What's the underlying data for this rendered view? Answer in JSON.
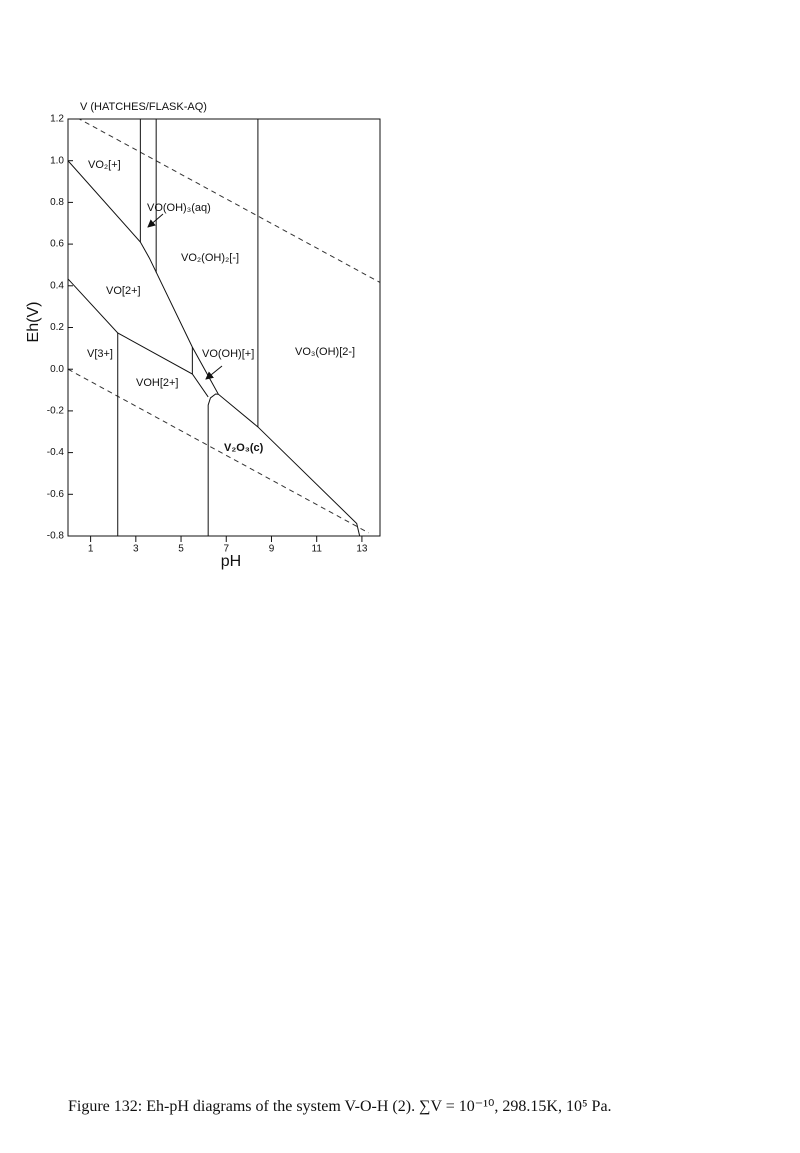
{
  "chart_data": {
    "type": "line",
    "title": "V (HATCHES/FLASK-AQ)",
    "x_label": "pH",
    "y_label": "Eh(V)",
    "xlim": [
      0,
      13.8
    ],
    "ylim": [
      -0.8,
      1.2
    ],
    "xticks": [
      1,
      3,
      5,
      7,
      9,
      11,
      13
    ],
    "yticks": [
      {
        "value": 1.2,
        "label": "1.2"
      },
      {
        "value": 1.0,
        "label": "1.0"
      },
      0.8,
      0.6,
      0.4,
      0.2,
      {
        "value": 0.0,
        "label": "0.0"
      },
      -0.2,
      -0.4,
      -0.6,
      -0.8
    ],
    "series": [
      {
        "color": "#333333",
        "dashed": true,
        "x": [
          0.4,
          13.8
        ],
        "y": [
          1.206,
          0.416
        ]
      },
      {
        "color": "#333333",
        "dashed": true,
        "x": [
          0,
          13.3
        ],
        "y": [
          0,
          -0.785
        ]
      },
      {
        "color": "#111111",
        "dashed": false,
        "x": [
          0,
          3.2,
          3.6,
          5.5,
          6.65,
          8.4,
          12.77,
          12.9
        ],
        "y": [
          1.0,
          0.61,
          0.533,
          0.106,
          -0.12,
          -0.277,
          -0.74,
          -0.8
        ]
      },
      {
        "color": "#111111",
        "dashed": false,
        "x": [
          0,
          2.2,
          5.5,
          6.2
        ],
        "y": [
          0.433,
          0.174,
          -0.023,
          -0.133
        ]
      },
      {
        "color": "#111111",
        "dashed": false,
        "x": [
          3.2,
          3.2
        ],
        "y": [
          1.2,
          0.61
        ]
      },
      {
        "color": "#111111",
        "dashed": false,
        "x": [
          3.9,
          3.9
        ],
        "y": [
          1.2,
          0.464
        ]
      },
      {
        "color": "#111111",
        "dashed": false,
        "x": [
          8.4,
          8.4
        ],
        "y": [
          1.2,
          -0.277
        ]
      },
      {
        "color": "#111111",
        "dashed": false,
        "x": [
          5.5,
          5.5
        ],
        "y": [
          0.106,
          -0.023
        ]
      },
      {
        "color": "#111111",
        "dashed": false,
        "x": [
          2.2,
          2.2
        ],
        "y": [
          0.174,
          -0.8
        ]
      },
      {
        "color": "#111111",
        "dashed": false,
        "x": [
          6.2,
          6.2,
          6.3,
          6.53,
          6.65
        ],
        "y": [
          -0.8,
          -0.172,
          -0.138,
          -0.119,
          -0.12
        ]
      }
    ],
    "annotations": [
      "VO₂[+]",
      "VO(OH)₃(aq)",
      "VO₂(OH)₂[-]",
      "VO[2+]",
      "V[3+]",
      "VO(OH)[+]",
      "VO₃(OH)[2-]",
      "VOH[2+]",
      "V₂O₃(c)"
    ]
  },
  "caption": "Figure 132: Eh-pH diagrams of the system V-O-H (2). ∑V = 10⁻¹⁰, 298.15K, 10⁵ Pa."
}
